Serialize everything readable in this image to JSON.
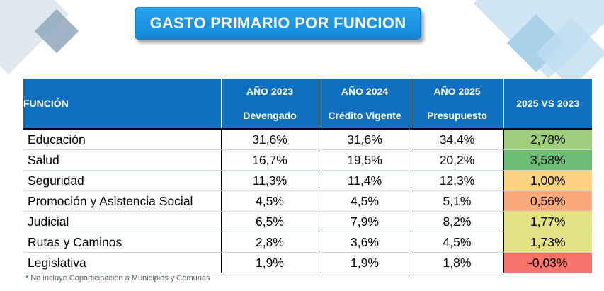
{
  "title": "GASTO PRIMARIO POR FUNCION",
  "header": {
    "funcion": "FUNCIÓN",
    "col2023_year": "AÑO 2023",
    "col2023_sub": "Devengado",
    "col2024_year": "AÑO 2024",
    "col2024_sub": "Crédito Vigente",
    "col2025_year": "AÑO 2025",
    "col2025_sub": "Presupuesto",
    "diff": "2025 VS 2023"
  },
  "rows": [
    {
      "funcion": "Educación",
      "y2023": "31,6%",
      "y2024": "31,6%",
      "y2025": "34,4%",
      "diff": "2,78%",
      "color": "#9fcf7e"
    },
    {
      "funcion": "Salud",
      "y2023": "16,7%",
      "y2024": "19,5%",
      "y2025": "20,2%",
      "diff": "3,58%",
      "color": "#6cbd74"
    },
    {
      "funcion": "Seguridad",
      "y2023": "11,3%",
      "y2024": "11,4%",
      "y2025": "12,3%",
      "diff": "1,00%",
      "color": "#fdd381"
    },
    {
      "funcion": "Promoción y Asistencia Social",
      "y2023": "4,5%",
      "y2024": "4,5%",
      "y2025": "5,1%",
      "diff": "0,56%",
      "color": "#f9a97a"
    },
    {
      "funcion": "Judicial",
      "y2023": "6,5%",
      "y2024": "7,9%",
      "y2025": "8,2%",
      "diff": "1,77%",
      "color": "#e3e282"
    },
    {
      "funcion": "Rutas y Caminos",
      "y2023": "2,8%",
      "y2024": "3,6%",
      "y2025": "4,5%",
      "diff": "1,73%",
      "color": "#e4e283"
    },
    {
      "funcion": "Legislativa",
      "y2023": "1,9%",
      "y2024": "1,9%",
      "y2025": "1,8%",
      "diff": "-0,03%",
      "color": "#f8756c"
    }
  ],
  "footnote": "* No incluye Coparticipación a Municipios y Comunas"
}
